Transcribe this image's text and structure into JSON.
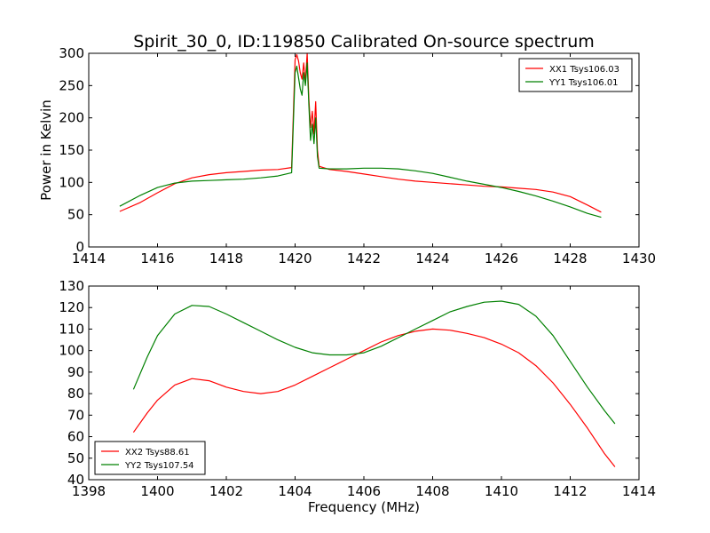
{
  "chart_data": [
    {
      "type": "line",
      "title": "Spirit_30_0, ID:119850 Calibrated On-source spectrum",
      "xlabel": "",
      "ylabel": "Power in Kelvin",
      "xlim": [
        1414,
        1430
      ],
      "ylim": [
        0,
        300
      ],
      "xticks": [
        "1414",
        "1416",
        "1418",
        "1420",
        "1422",
        "1424",
        "1426",
        "1428",
        "1430"
      ],
      "yticks": [
        "0",
        "50",
        "100",
        "150",
        "200",
        "250",
        "300"
      ],
      "grid": false,
      "legend_position": "top-right",
      "series": [
        {
          "name": "XX1 Tsys106.03",
          "color": "#ff0000",
          "x": [
            1414.9,
            1415.5,
            1416.0,
            1416.5,
            1417.0,
            1417.5,
            1418.0,
            1418.5,
            1419.0,
            1419.5,
            1419.9,
            1420.0,
            1420.05,
            1420.1,
            1420.15,
            1420.2,
            1420.25,
            1420.3,
            1420.35,
            1420.4,
            1420.45,
            1420.5,
            1420.55,
            1420.6,
            1420.65,
            1420.7,
            1421.0,
            1421.5,
            1422.0,
            1422.5,
            1423.0,
            1423.5,
            1424.0,
            1424.5,
            1425.0,
            1425.5,
            1426.0,
            1426.5,
            1427.0,
            1427.5,
            1428.0,
            1428.5,
            1428.9
          ],
          "y": [
            55,
            69,
            84,
            98,
            107,
            112,
            115,
            117,
            119,
            120,
            123,
            290,
            298,
            288,
            270,
            260,
            285,
            255,
            300,
            230,
            185,
            210,
            175,
            225,
            150,
            125,
            120,
            117,
            113,
            109,
            105,
            102,
            100,
            98,
            96,
            94,
            93,
            91,
            89,
            85,
            78,
            65,
            54
          ]
        },
        {
          "name": "YY1 Tsys106.01",
          "color": "#008000",
          "x": [
            1414.9,
            1415.5,
            1416.0,
            1416.5,
            1417.0,
            1417.5,
            1418.0,
            1418.5,
            1419.0,
            1419.5,
            1419.9,
            1420.0,
            1420.05,
            1420.1,
            1420.15,
            1420.2,
            1420.25,
            1420.3,
            1420.35,
            1420.4,
            1420.45,
            1420.5,
            1420.55,
            1420.6,
            1420.65,
            1420.7,
            1421.0,
            1421.5,
            1422.0,
            1422.5,
            1423.0,
            1423.5,
            1424.0,
            1424.5,
            1425.0,
            1425.5,
            1426.0,
            1426.5,
            1427.0,
            1427.5,
            1428.0,
            1428.5,
            1428.9
          ],
          "y": [
            63,
            80,
            92,
            99,
            102,
            103,
            104,
            105,
            107,
            110,
            115,
            270,
            280,
            262,
            245,
            235,
            270,
            250,
            285,
            220,
            165,
            190,
            160,
            200,
            140,
            122,
            121,
            121,
            122,
            122,
            121,
            118,
            114,
            108,
            102,
            97,
            92,
            86,
            79,
            71,
            62,
            52,
            46
          ]
        }
      ]
    },
    {
      "type": "line",
      "title": "",
      "xlabel": "Frequency (MHz)",
      "ylabel": "",
      "xlim": [
        1398,
        1414
      ],
      "ylim": [
        40,
        130
      ],
      "xticks": [
        "1398",
        "1400",
        "1402",
        "1404",
        "1406",
        "1408",
        "1410",
        "1412",
        "1414"
      ],
      "yticks": [
        "40",
        "50",
        "60",
        "70",
        "80",
        "90",
        "100",
        "110",
        "120",
        "130"
      ],
      "grid": false,
      "legend_position": "bottom-left",
      "series": [
        {
          "name": "XX2 Tsys88.61",
          "color": "#ff0000",
          "x": [
            1399.3,
            1399.7,
            1400.0,
            1400.5,
            1401.0,
            1401.5,
            1402.0,
            1402.5,
            1403.0,
            1403.5,
            1404.0,
            1404.5,
            1405.0,
            1405.5,
            1406.0,
            1406.5,
            1407.0,
            1407.5,
            1408.0,
            1408.5,
            1409.0,
            1409.5,
            1410.0,
            1410.5,
            1411.0,
            1411.5,
            1412.0,
            1412.5,
            1413.0,
            1413.3
          ],
          "y": [
            62,
            71,
            77,
            84,
            87,
            86,
            83,
            81,
            80,
            81,
            84,
            88,
            92,
            96,
            100,
            104,
            107,
            109,
            110,
            109.5,
            108,
            106,
            103,
            99,
            93,
            85,
            75,
            64,
            52,
            46
          ]
        },
        {
          "name": "YY2 Tsys107.54",
          "color": "#008000",
          "x": [
            1399.3,
            1399.7,
            1400.0,
            1400.5,
            1401.0,
            1401.5,
            1402.0,
            1402.5,
            1403.0,
            1403.5,
            1404.0,
            1404.5,
            1405.0,
            1405.5,
            1406.0,
            1406.5,
            1407.0,
            1407.5,
            1408.0,
            1408.5,
            1409.0,
            1409.5,
            1410.0,
            1410.5,
            1411.0,
            1411.5,
            1412.0,
            1412.5,
            1413.0,
            1413.3
          ],
          "y": [
            82,
            97,
            107,
            117,
            121,
            120.5,
            117,
            113,
            109,
            105,
            101.5,
            99,
            98,
            98,
            99,
            102,
            106,
            110,
            114,
            118,
            120.5,
            122.5,
            123,
            121.5,
            116,
            107,
            95,
            83,
            72,
            66
          ]
        }
      ]
    }
  ]
}
